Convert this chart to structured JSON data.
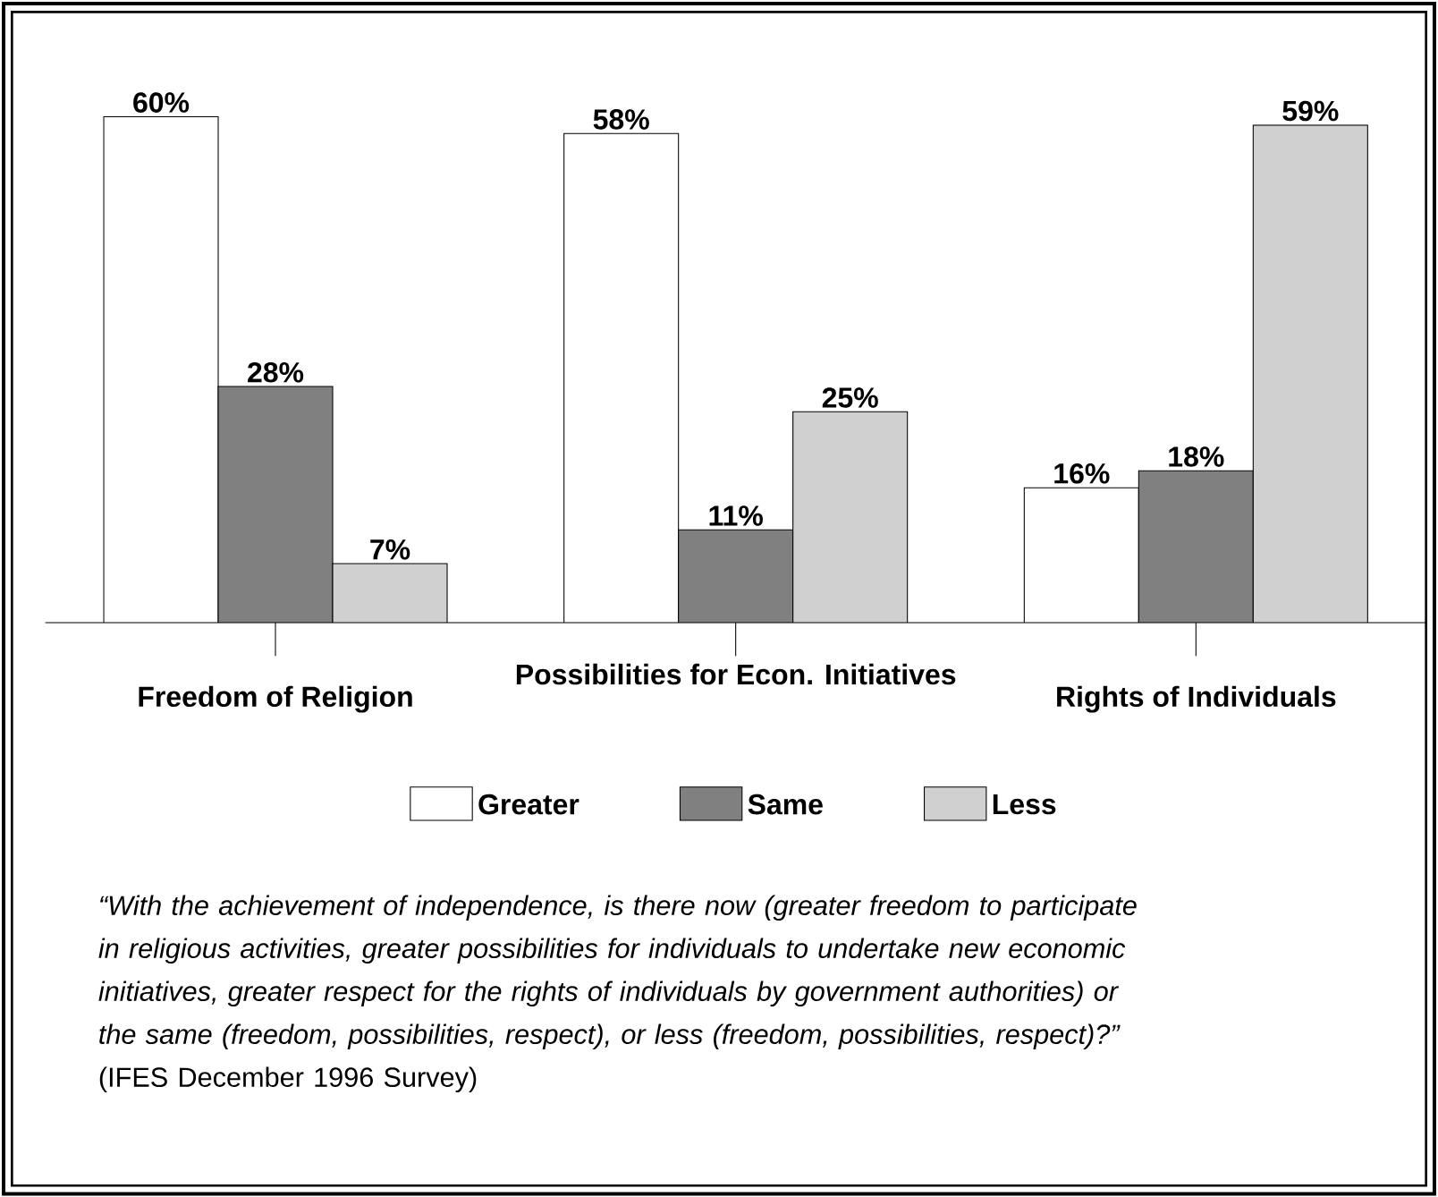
{
  "chart_data": {
    "type": "bar",
    "categories": [
      "Freedom of Religion",
      "Possibilities for Econ. Initiatives",
      "Rights of Individuals"
    ],
    "series": [
      {
        "name": "Greater",
        "color": "#ffffff",
        "values": [
          60,
          58,
          16
        ],
        "value_labels": [
          "60%",
          "58%",
          "16%"
        ]
      },
      {
        "name": "Same",
        "color": "#808080",
        "values": [
          28,
          11,
          18
        ],
        "value_labels": [
          "28%",
          "11%",
          "18%"
        ]
      },
      {
        "name": "Less",
        "color": "#d0d0d0",
        "values": [
          7,
          25,
          59
        ],
        "value_labels": [
          "7%",
          "25%",
          "59%"
        ]
      }
    ],
    "legend": "bottom",
    "annotations": [
      "*“With the achievement of independence, is there now (greater freedom to participate in religious activities, greater possibilities for individuals to undertake new economic initiatives, greater respect for the rights of individuals by government authorities) or the same (freedom, possibilities, respect), or less (freedom, possibilities, respect)?”* (IFES December 1996 Survey)"
    ]
  }
}
